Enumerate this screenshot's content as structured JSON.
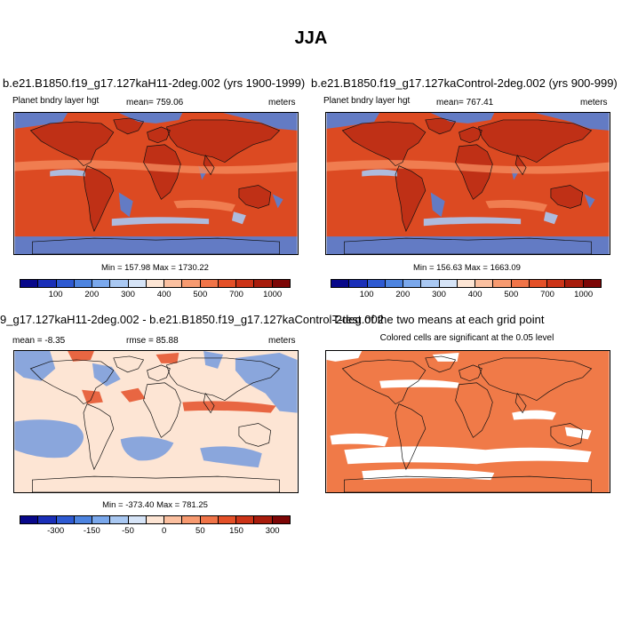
{
  "figure_title": "JJA",
  "panels": {
    "tl": {
      "title": "b.e21.B1850.f19_g17.127kaH11-2deg.002 (yrs 1900-1999)",
      "left_label": "Planet bndry layer hgt",
      "center_label": "mean= 759.06",
      "right_label": "meters",
      "minmax": "Min = 157.98 Max = 1730.22"
    },
    "tr": {
      "title": "b.e21.B1850.f19_g17.127kaControl-2deg.002 (yrs 900-999)",
      "left_label": "Planet bndry layer hgt",
      "center_label": "mean= 767.41",
      "right_label": "meters",
      "minmax": "Min = 156.63 Max = 1663.09"
    },
    "bl": {
      "title": "9_g17.127kaH11-2deg.002 - b.e21.B1850.f19_g17.127kaControl-2deg.002",
      "left_label": "mean = -8.35",
      "center_label": "rmse = 85.88",
      "right_label": "meters",
      "minmax": "Min = -373.40 Max = 781.25"
    },
    "br": {
      "title": "T-test of the two means at each grid point",
      "subtitle": "Colored cells are significant at the 0.05 level"
    }
  },
  "colorbars": {
    "abs": {
      "colors": [
        "#08088a",
        "#1a2fb8",
        "#2e5ad2",
        "#4d84e0",
        "#7aa8ec",
        "#a9c8f2",
        "#d6e4f7",
        "#fde5d4",
        "#fbc0a0",
        "#f79a70",
        "#f07448",
        "#e45028",
        "#cc3418",
        "#a81c0c",
        "#7d0606"
      ],
      "labels": [
        "100",
        "200",
        "300",
        "400",
        "500",
        "700",
        "1000"
      ]
    },
    "diff": {
      "colors": [
        "#08088a",
        "#1a2fb8",
        "#2e5ad2",
        "#4d84e0",
        "#7aa8ec",
        "#a9c8f2",
        "#d6e4f7",
        "#fde5d4",
        "#fbc0a0",
        "#f79a70",
        "#f07448",
        "#e45028",
        "#cc3418",
        "#a81c0c",
        "#7d0606"
      ],
      "labels": [
        "-300",
        "-150",
        "-50",
        "0",
        "50",
        "150",
        "300"
      ]
    }
  },
  "map_colors": {
    "abs_base": "#dc4a22",
    "abs_dark": "#a81c0c",
    "abs_light": "#f58a5c",
    "abs_blue": "#4d84e0",
    "abs_paleblue": "#a9c8f2",
    "diff_base": "#fde5d4",
    "diff_blue": "#4d84e0",
    "diff_red": "#e45028",
    "ttest": "#f07a48"
  }
}
